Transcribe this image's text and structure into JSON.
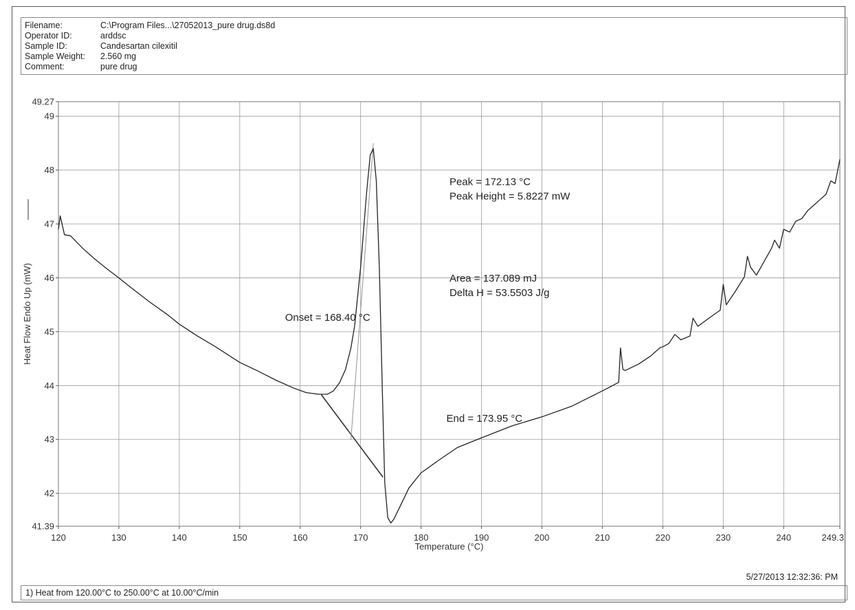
{
  "header": {
    "rows": [
      {
        "label": "Filename:",
        "value": "C:\\Program Files...\\27052013_pure drug.ds8d"
      },
      {
        "label": "Operator ID:",
        "value": "arddsc"
      },
      {
        "label": "Sample ID:",
        "value": "Candesartan cilexitil"
      },
      {
        "label": "Sample Weight:",
        "value": "2.560 mg"
      },
      {
        "label": "Comment:",
        "value": "pure drug"
      }
    ]
  },
  "footer": {
    "timestamp": "5/27/2013 12:32:36: PM",
    "method": "1)  Heat from 120.00°C to 250.00°C at 10.00°C/min"
  },
  "chart_data": {
    "type": "line",
    "xlabel": "Temperature (°C)",
    "ylabel": "Heat Flow Endo Up (mW)",
    "xlim": [
      120,
      249.3
    ],
    "ylim": [
      41.39,
      49.27
    ],
    "x_tick_labels": [
      "120",
      "130",
      "140",
      "150",
      "160",
      "170",
      "180",
      "190",
      "200",
      "210",
      "220",
      "230",
      "240",
      "249.3"
    ],
    "y_tick_labels": [
      "41.39",
      "42",
      "43",
      "44",
      "45",
      "46",
      "47",
      "48",
      "49",
      "49.27"
    ],
    "grid": true,
    "series": [
      {
        "color": "#222222",
        "x": [
          120,
          120.3,
          121,
          122,
          124,
          126,
          128,
          130,
          132,
          135,
          138,
          140,
          143,
          146,
          150,
          153,
          156,
          159,
          161,
          163,
          164.5,
          165.5,
          166.5,
          167.5,
          168.4,
          169,
          170,
          171,
          171.6,
          172.1,
          172.6,
          173.1,
          173.6,
          174,
          174.5,
          175,
          175.5,
          176.5,
          178,
          180,
          183,
          186,
          190,
          195,
          200,
          205,
          210,
          212.7,
          213,
          213.4,
          213.8,
          216,
          218,
          219.5,
          220,
          221,
          222,
          223,
          224.5,
          225,
          225.8,
          228,
          229.5,
          230,
          230.5,
          232,
          233.5,
          234,
          234.5,
          235.5,
          236.5,
          237.5,
          238,
          238.5,
          239.3,
          240,
          241,
          242,
          243,
          244,
          245,
          246,
          247,
          247.8,
          248.5,
          249.3
        ],
        "y": [
          46.9,
          47.15,
          46.8,
          46.78,
          46.55,
          46.35,
          46.17,
          46.0,
          45.82,
          45.56,
          45.32,
          45.14,
          44.92,
          44.72,
          44.43,
          44.27,
          44.1,
          43.95,
          43.87,
          43.84,
          43.84,
          43.9,
          44.05,
          44.3,
          44.7,
          45.1,
          46.2,
          47.6,
          48.28,
          48.4,
          47.8,
          46.2,
          43.9,
          42.2,
          41.55,
          41.45,
          41.52,
          41.75,
          42.1,
          42.38,
          42.62,
          42.85,
          43.03,
          43.25,
          43.42,
          43.62,
          43.9,
          44.06,
          44.7,
          44.3,
          44.28,
          44.4,
          44.55,
          44.7,
          44.72,
          44.78,
          44.95,
          44.85,
          44.92,
          45.25,
          45.1,
          45.28,
          45.4,
          45.88,
          45.5,
          45.75,
          46.02,
          46.4,
          46.2,
          46.05,
          46.25,
          46.45,
          46.55,
          46.7,
          46.55,
          46.9,
          46.85,
          47.05,
          47.1,
          47.25,
          47.35,
          47.45,
          47.55,
          47.8,
          47.75,
          48.2
        ]
      }
    ],
    "construction_lines": [
      {
        "x": [
          163.5,
          173.7
        ],
        "y": [
          43.83,
          42.3
        ]
      },
      {
        "x": [
          168.4,
          172.1
        ],
        "y": [
          43.0,
          48.5
        ]
      }
    ],
    "annotations": [
      {
        "text": "Peak = 172.13 °C",
        "x": 184.7,
        "y": 47.72
      },
      {
        "text": "Peak Height = 5.8227 mW",
        "x": 184.7,
        "y": 47.45
      },
      {
        "text": "Area = 137.089 mJ",
        "x": 184.7,
        "y": 45.93
      },
      {
        "text": "Delta H = 53.5503 J/g",
        "x": 184.7,
        "y": 45.66
      },
      {
        "text": "Onset = 168.40 °C",
        "x": 157.5,
        "y": 45.2
      },
      {
        "text": "End = 173.95 °C",
        "x": 184.2,
        "y": 43.33
      }
    ]
  }
}
